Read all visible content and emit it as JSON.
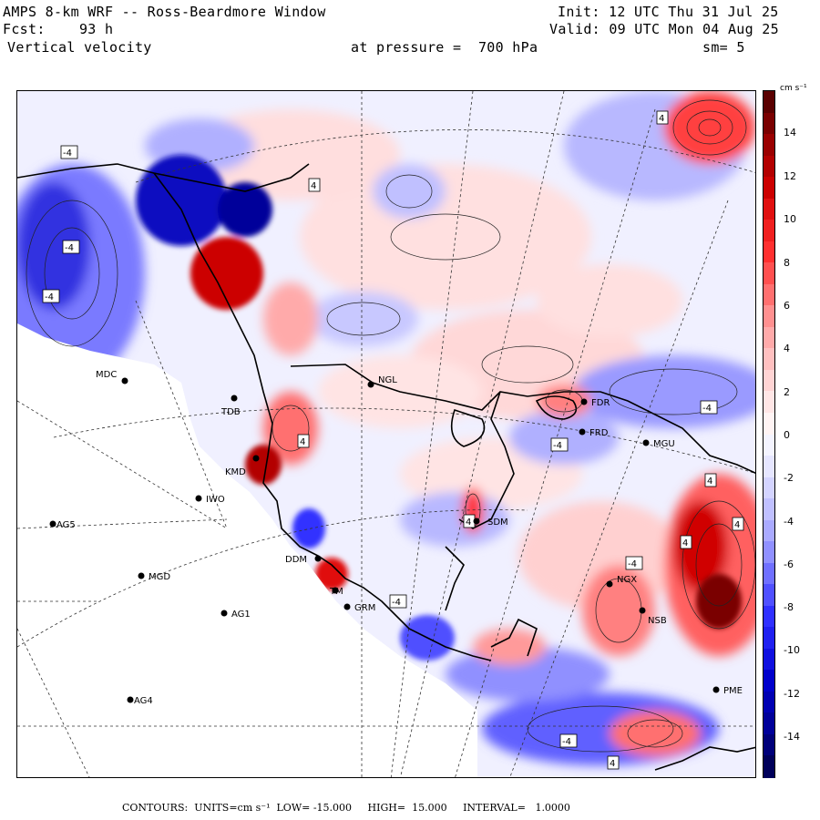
{
  "header": {
    "line1_left": "AMPS 8-km WRF -- Ross-Beardmore Window",
    "line1_right": "Init: 12 UTC Thu 31 Jul 25",
    "line2_left": "Fcst:    93 h",
    "line2_right": "Valid: 09 UTC Mon 04 Aug 25",
    "line3_left": "Vertical velocity",
    "line3_mid": "at pressure =  700 hPa",
    "line3_right": "sm= 5"
  },
  "colorbar": {
    "unit": "cm s⁻¹",
    "ticks": [
      "14",
      "12",
      "10",
      "8",
      "6",
      "4",
      "2",
      "0",
      "-2",
      "-4",
      "-6",
      "-8",
      "-10",
      "-12",
      "-14"
    ],
    "colors_top_to_bottom": [
      "#5a0000",
      "#7a0000",
      "#9a0000",
      "#b30000",
      "#cc0000",
      "#e01010",
      "#f02020",
      "#ff3030",
      "#ff5050",
      "#ff7070",
      "#ff9090",
      "#ffaaaa",
      "#ffc0c0",
      "#ffd4d4",
      "#ffe6e6",
      "#fff4f4",
      "#f4f4ff",
      "#e6e6ff",
      "#d4d4ff",
      "#c0c0ff",
      "#aaaaff",
      "#9090ff",
      "#7070ff",
      "#5050ff",
      "#3030ff",
      "#2020f0",
      "#1010e0",
      "#0000cc",
      "#0000b3",
      "#00009a",
      "#00007a",
      "#00005a"
    ]
  },
  "stations": [
    {
      "id": "MDC",
      "name": "MDC"
    },
    {
      "id": "NGL",
      "name": "NGL"
    },
    {
      "id": "FDR1",
      "name": "FDR"
    },
    {
      "id": "FRD",
      "name": "FRD"
    },
    {
      "id": "MGU",
      "name": "MGU"
    },
    {
      "id": "TDB",
      "name": "TDB"
    },
    {
      "id": "KMD",
      "name": "KMD"
    },
    {
      "id": "IWO",
      "name": "IWO"
    },
    {
      "id": "AG5",
      "name": "AG5"
    },
    {
      "id": "SDM",
      "name": "SDM"
    },
    {
      "id": "DDM",
      "name": "DDM"
    },
    {
      "id": "MGD",
      "name": "MGD"
    },
    {
      "id": "TM",
      "name": "TM"
    },
    {
      "id": "GRM",
      "name": "GRM"
    },
    {
      "id": "AG1",
      "name": "AG1"
    },
    {
      "id": "NGX",
      "name": "NGX"
    },
    {
      "id": "NSB",
      "name": "NSB"
    },
    {
      "id": "AG4",
      "name": "AG4"
    },
    {
      "id": "PME",
      "name": "PME"
    }
  ],
  "contour_labels": [
    "4",
    "-4",
    "4",
    "-4",
    "-4",
    "4",
    "-4",
    "4",
    "4",
    "-4",
    "4",
    "-4",
    "4",
    "-4",
    "4",
    "-4"
  ],
  "footer": {
    "contours_label": "CONTOURS:",
    "units_label": "UNITS=cm s⁻¹",
    "low_label": "LOW= -15.000",
    "high_label": "HIGH=  15.000",
    "interval_label": "INTERVAL=   1.0000"
  }
}
